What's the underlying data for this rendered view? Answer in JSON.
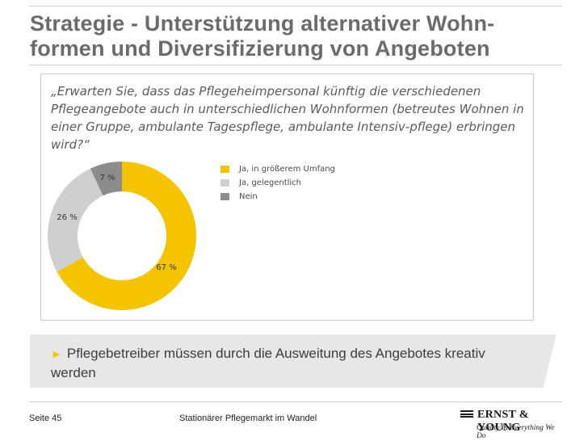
{
  "slide": {
    "title": "Strategie - Unterstützung alternativer Wohn-formen und Diversifizierung von Angeboten",
    "callout_arrow": "►",
    "callout": "Pflegebetreiber müssen durch die  Ausweitung des Angebotes kreativ werden"
  },
  "footer": {
    "page": "Seite 45",
    "doc_title": "Stationärer Pflegemarkt im Wandel",
    "logo_name": "ERNST & YOUNG",
    "logo_tagline": "Quality In Everything We Do"
  },
  "colors": {
    "accent": "#f5c400",
    "light_gray": "#cfcfcf",
    "dark_gray": "#8c8c8c"
  },
  "chart_data": {
    "type": "pie",
    "style": "donut",
    "title": "„Erwarten Sie, dass das Pflegeheimpersonal künftig die verschiedenen Pflegeangebote auch in unterschiedlichen Wohnformen (betreutes Wohnen in einer Gruppe, ambulante Tagespflege, ambulante Intensiv-pflege) erbringen wird?“",
    "unit": "%",
    "legend_position": "top-right",
    "series": [
      {
        "name": "Ja, in größerem Umfang",
        "value": 67,
        "label": "67 %",
        "color": "#f5c400"
      },
      {
        "name": "Ja, gelegentlich",
        "value": 26,
        "label": "26 %",
        "color": "#cfcfcf"
      },
      {
        "name": "Nein",
        "value": 7,
        "label": "7 %",
        "color": "#8c8c8c"
      }
    ]
  }
}
